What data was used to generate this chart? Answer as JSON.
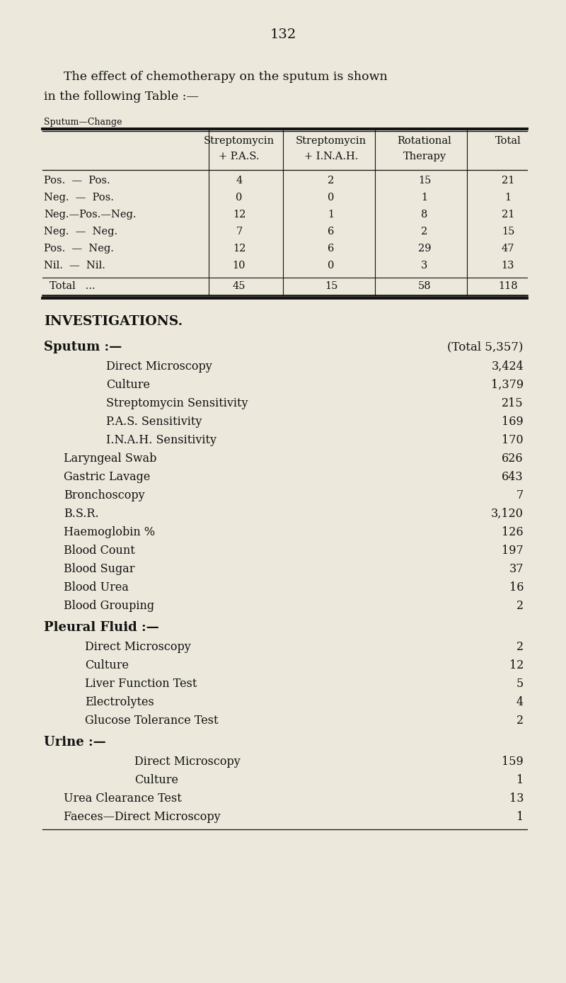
{
  "page_number": "132",
  "bg_color": "#ece8db",
  "text_color": "#111111",
  "intro_line1": "The effect of chemotherapy on the sputum is shown",
  "intro_line2": "in the following Table :—",
  "table_label": "Sputum—Change",
  "table_headers_line1": [
    "",
    "Streptomycin",
    "Streptomycin",
    "Rotational",
    "Total"
  ],
  "table_headers_line2": [
    "",
    "+ P.A.S.",
    "+ I.N.A.H.",
    "Therapy",
    ""
  ],
  "table_rows": [
    [
      "Pos.  —  Pos.",
      "4",
      "2",
      "15",
      "21"
    ],
    [
      "Neg.  —  Pos.",
      "0",
      "0",
      "1",
      "1"
    ],
    [
      "Neg.—Pos.—Neg.",
      "12",
      "1",
      "8",
      "21"
    ],
    [
      "Neg.  —  Neg.",
      "7",
      "6",
      "2",
      "15"
    ],
    [
      "Pos.  —  Neg.",
      "12",
      "6",
      "29",
      "47"
    ],
    [
      "Nil.  —  Nil.",
      "10",
      "0",
      "3",
      "13"
    ]
  ],
  "table_total_row": [
    "Total   ...",
    "45",
    "15",
    "58",
    "118"
  ],
  "investigations_title": "INVESTIGATIONS.",
  "sputum_header": "Sputum :—",
  "sputum_total": "(Total 5,357)",
  "sputum_indented": [
    [
      "Direct Microscopy",
      "3,424"
    ],
    [
      "Culture",
      "1,379"
    ],
    [
      "Streptomycin Sensitivity",
      "215"
    ],
    [
      "P.A.S. Sensitivity",
      "169"
    ],
    [
      "I.N.A.H. Sensitivity",
      "170"
    ]
  ],
  "sputum_level1": [
    [
      "Laryngeal Swab",
      "626"
    ],
    [
      "Gastric Lavage",
      "643"
    ],
    [
      "Bronchoscopy",
      "7"
    ],
    [
      "B.S.R.",
      "3,120"
    ],
    [
      "Haemoglobin %",
      "126"
    ],
    [
      "Blood Count",
      "197"
    ],
    [
      "Blood Sugar",
      "37"
    ],
    [
      "Blood Urea",
      "16"
    ],
    [
      "Blood Grouping",
      "2"
    ]
  ],
  "pleural_header": "Pleural Fluid :—",
  "pleural_items": [
    [
      "Direct Microscopy",
      "2"
    ],
    [
      "Culture",
      "12"
    ],
    [
      "Liver Function Test",
      "5"
    ],
    [
      "Electrolytes",
      "4"
    ],
    [
      "Glucose Tolerance Test",
      "2"
    ]
  ],
  "urine_header": "Urine :—",
  "urine_deep": [
    [
      "Direct Microscopy",
      "159"
    ],
    [
      "Culture",
      "1"
    ]
  ],
  "urine_level1": [
    [
      "Urea Clearance Test",
      "13"
    ],
    [
      "Faeces—Direct Microscopy",
      "1"
    ]
  ]
}
